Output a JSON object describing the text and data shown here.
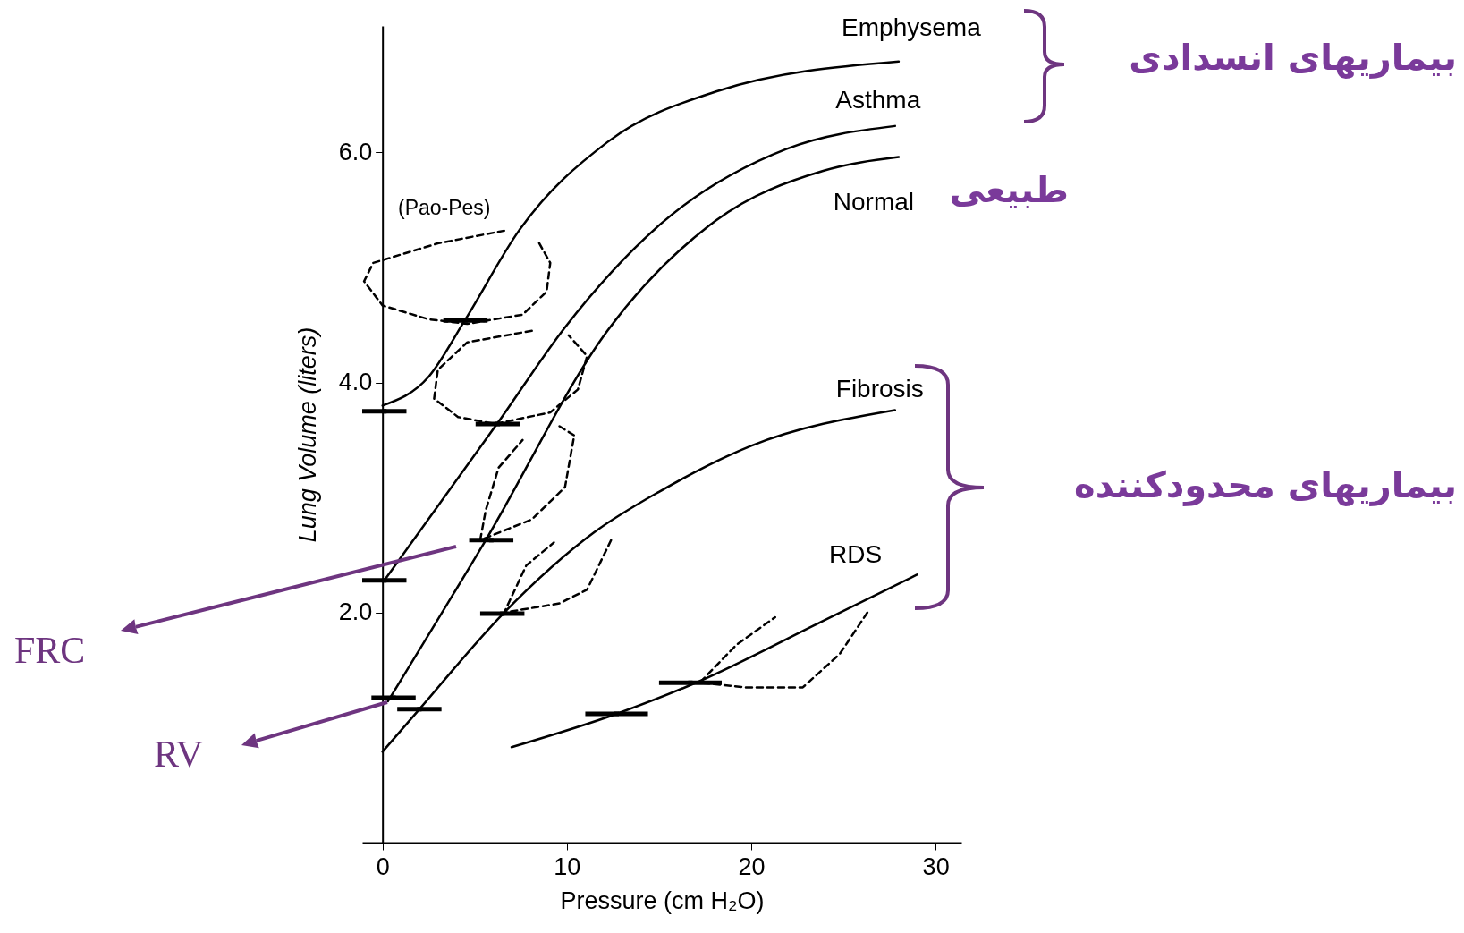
{
  "chart_data": {
    "type": "line",
    "xlabel": "Pressure (cm H₂O)",
    "ylabel": "Lung Volume (liters)",
    "xlim": [
      -1.1,
      31.4
    ],
    "ylim": [
      0,
      7.1
    ],
    "xticks": [
      0,
      10,
      20,
      30
    ],
    "yticks": [
      {
        "value": 2,
        "label": "2.0"
      },
      {
        "value": 4,
        "label": "4.0"
      },
      {
        "value": 6,
        "label": "6.0"
      }
    ],
    "series": [
      {
        "name": "Emphysema",
        "color": "#000000",
        "x": [
          0,
          2.5,
          4.5,
          7.4,
          12.2,
          18.1,
          28
        ],
        "values": [
          3.8,
          4.05,
          4.55,
          5.32,
          6.09,
          6.53,
          6.79
        ]
      },
      {
        "name": "Asthma",
        "color": "#000000",
        "x": [
          0.1,
          6.3,
          9.9,
          15.1,
          21.9,
          27.8
        ],
        "values": [
          2.28,
          3.66,
          4.48,
          5.38,
          6.03,
          6.23
        ]
      },
      {
        "name": "Normal",
        "color": "#000000",
        "x": [
          0.3,
          5.6,
          12.2,
          18.1,
          23.9,
          28
        ],
        "values": [
          1.23,
          2.63,
          4.45,
          5.41,
          5.84,
          5.96
        ]
      },
      {
        "name": "Fibrosis",
        "color": "#000000",
        "x": [
          0,
          2,
          6.6,
          11.5,
          15,
          20,
          27.8
        ],
        "values": [
          0.79,
          1.16,
          2.0,
          2.7,
          3.05,
          3.45,
          3.76
        ]
      },
      {
        "name": "RDS",
        "color": "#000000",
        "x": [
          7,
          12.7,
          17,
          23.8,
          29
        ],
        "values": [
          0.83,
          1.12,
          1.39,
          1.92,
          2.33
        ]
      },
      {
        "color": "#000000",
        "line_style": "dashed",
        "x": [
          6.6,
          3.0,
          -0.5,
          -1.0,
          0,
          2.5,
          4.6,
          7.6,
          8.9,
          9.1,
          8.4
        ],
        "values": [
          5.32,
          5.21,
          5.04,
          4.88,
          4.67,
          4.55,
          4.51,
          4.59,
          4.79,
          5.04,
          5.24
        ]
      },
      {
        "color": "#000000",
        "line_style": "dashed",
        "x": [
          8.1,
          4.6,
          3.0,
          2.8,
          4.1,
          6.1,
          9.1,
          10.6,
          11.1,
          10.1
        ],
        "values": [
          4.45,
          4.35,
          4.11,
          3.86,
          3.7,
          3.64,
          3.74,
          3.94,
          4.23,
          4.41
        ]
      },
      {
        "color": "#000000",
        "line_style": "dashed",
        "x": [
          9.6,
          10.4,
          9.9,
          8.1,
          5.3,
          5.6,
          6.3,
          7.6
        ],
        "values": [
          3.62,
          3.54,
          3.09,
          2.81,
          2.63,
          2.89,
          3.26,
          3.5
        ]
      },
      {
        "color": "#000000",
        "line_style": "dashed",
        "x": [
          12.4,
          11.1,
          9.6,
          6.6,
          7.8,
          9.3
        ],
        "values": [
          2.63,
          2.2,
          2.08,
          2.0,
          2.41,
          2.61
        ]
      },
      {
        "color": "#000000",
        "line_style": "dashed",
        "x": [
          26.3,
          24.8,
          22.8,
          19.7,
          17.2,
          19.2,
          21.3
        ],
        "values": [
          2.0,
          1.64,
          1.35,
          1.35,
          1.39,
          1.72,
          1.96
        ]
      },
      {
        "type": "scatter",
        "marker": "square",
        "color": "#000000",
        "x": [
          0.1,
          4.5,
          0.1,
          6.25,
          0.6,
          5.9,
          2,
          6.5,
          12.7,
          16.7
        ],
        "values": [
          3.75,
          4.54,
          2.28,
          3.64,
          1.26,
          2.63,
          1.16,
          1.99,
          1.12,
          1.39
        ],
        "xerrors": [
          1.2,
          1.2,
          1.2,
          1.2,
          1.2,
          1.2,
          1.2,
          1.2,
          1.7,
          1.7
        ]
      }
    ],
    "annotations": [
      "(Pao-Pes)",
      "بیماریهای انسدادی",
      "طبیعی",
      "بیماریهای محدودکننده",
      "FRC",
      "RV"
    ]
  }
}
